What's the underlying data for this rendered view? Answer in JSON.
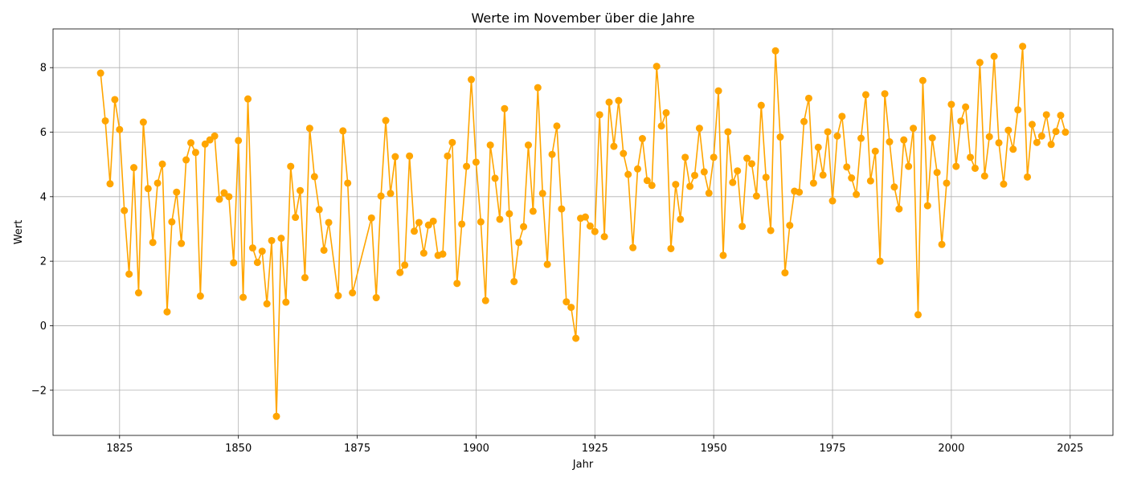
{
  "chart_data": {
    "type": "line",
    "title": "Werte im November über die Jahre",
    "xlabel": "Jahr",
    "ylabel": "Wert",
    "xlim": [
      1811,
      2034
    ],
    "ylim": [
      -3.4,
      9.2
    ],
    "xticks": [
      1825,
      1850,
      1875,
      1900,
      1925,
      1950,
      1975,
      2000,
      2025
    ],
    "yticks": [
      -2,
      0,
      2,
      4,
      6,
      8
    ],
    "ytick_labels": [
      "−2",
      "0",
      "2",
      "4",
      "6",
      "8"
    ],
    "grid": true,
    "series": [
      {
        "color": "#ffa500",
        "marker": "circle",
        "x": [
          1821,
          1822,
          1823,
          1824,
          1825,
          1826,
          1827,
          1828,
          1829,
          1830,
          1831,
          1832,
          1833,
          1834,
          1835,
          1836,
          1837,
          1838,
          1839,
          1840,
          1841,
          1842,
          1843,
          1844,
          1845,
          1846,
          1847,
          1848,
          1849,
          1850,
          1851,
          1852,
          1853,
          1854,
          1855,
          1856,
          1857,
          1858,
          1859,
          1860,
          1861,
          1862,
          1863,
          1864,
          1865,
          1866,
          1867,
          1868,
          1869,
          1871,
          1872,
          1873,
          1874,
          1878,
          1879,
          1880,
          1881,
          1882,
          1883,
          1884,
          1885,
          1886,
          1887,
          1888,
          1889,
          1890,
          1891,
          1892,
          1893,
          1894,
          1895,
          1896,
          1897,
          1898,
          1899,
          1900,
          1901,
          1902,
          1903,
          1904,
          1905,
          1906,
          1907,
          1908,
          1909,
          1910,
          1911,
          1912,
          1913,
          1914,
          1915,
          1916,
          1917,
          1918,
          1919,
          1920,
          1921,
          1922,
          1923,
          1924,
          1925,
          1926,
          1927,
          1928,
          1929,
          1930,
          1931,
          1932,
          1933,
          1934,
          1935,
          1936,
          1937,
          1938,
          1939,
          1940,
          1941,
          1942,
          1943,
          1944,
          1945,
          1946,
          1947,
          1948,
          1949,
          1950,
          1951,
          1952,
          1953,
          1954,
          1955,
          1956,
          1957,
          1958,
          1959,
          1960,
          1961,
          1962,
          1963,
          1964,
          1965,
          1966,
          1967,
          1968,
          1969,
          1970,
          1971,
          1972,
          1973,
          1974,
          1975,
          1976,
          1977,
          1978,
          1979,
          1980,
          1981,
          1982,
          1983,
          1984,
          1985,
          1986,
          1987,
          1988,
          1989,
          1990,
          1991,
          1992,
          1993,
          1994,
          1995,
          1996,
          1997,
          1998,
          1999,
          2000,
          2001,
          2002,
          2003,
          2004,
          2005,
          2006,
          2007,
          2008,
          2009,
          2010,
          2011,
          2012,
          2013,
          2014,
          2015,
          2016,
          2017,
          2018,
          2019,
          2020,
          2021,
          2022,
          2023,
          2024
        ],
        "y": [
          7.83,
          6.35,
          4.4,
          7.01,
          6.08,
          3.57,
          1.6,
          4.9,
          1.02,
          6.31,
          4.25,
          2.58,
          4.42,
          5.01,
          0.43,
          3.22,
          4.14,
          2.55,
          5.14,
          5.67,
          5.37,
          0.92,
          5.63,
          5.76,
          5.88,
          3.92,
          4.12,
          4.0,
          1.95,
          5.74,
          0.88,
          7.03,
          2.41,
          1.96,
          2.31,
          0.68,
          2.64,
          -2.81,
          2.71,
          0.73,
          4.94,
          3.36,
          4.19,
          1.49,
          6.12,
          4.62,
          3.6,
          2.34,
          3.2,
          0.93,
          6.04,
          4.42,
          1.02,
          3.34,
          0.87,
          4.02,
          6.36,
          4.1,
          5.24,
          1.65,
          1.88,
          5.26,
          2.93,
          3.2,
          2.25,
          3.12,
          3.24,
          2.18,
          2.22,
          5.26,
          5.68,
          1.31,
          3.15,
          4.94,
          7.63,
          5.07,
          3.22,
          0.78,
          5.6,
          4.57,
          3.3,
          6.73,
          3.47,
          1.37,
          2.58,
          3.07,
          5.6,
          3.55,
          7.38,
          4.1,
          1.9,
          5.31,
          6.19,
          3.62,
          0.74,
          0.57,
          -0.39,
          3.33,
          3.37,
          3.09,
          2.92,
          6.54,
          2.76,
          6.93,
          5.56,
          6.98,
          5.34,
          4.69,
          2.42,
          4.86,
          5.8,
          4.5,
          4.35,
          8.04,
          6.19,
          6.6,
          2.39,
          4.38,
          3.3,
          5.22,
          4.32,
          4.66,
          6.12,
          4.77,
          4.11,
          5.22,
          7.28,
          2.18,
          6.01,
          4.44,
          4.8,
          3.08,
          5.19,
          5.02,
          4.02,
          6.83,
          4.6,
          2.95,
          8.52,
          5.85,
          1.64,
          3.11,
          4.17,
          4.14,
          6.33,
          7.05,
          4.42,
          5.53,
          4.67,
          6.01,
          3.87,
          5.88,
          6.49,
          4.92,
          4.58,
          4.07,
          5.81,
          7.16,
          4.49,
          5.41,
          2.0,
          7.19,
          5.7,
          4.3,
          3.62,
          5.76,
          4.94,
          6.12,
          0.34,
          7.6,
          3.72,
          5.82,
          4.75,
          2.52,
          4.42,
          6.86,
          4.94,
          6.34,
          6.78,
          5.22,
          4.88,
          8.16,
          4.64,
          5.86,
          8.35,
          5.67,
          4.39,
          6.06,
          5.47,
          6.69,
          8.66,
          4.61,
          6.24,
          5.68,
          5.88,
          6.54,
          5.62,
          6.02,
          6.52,
          6.0
        ]
      }
    ]
  }
}
